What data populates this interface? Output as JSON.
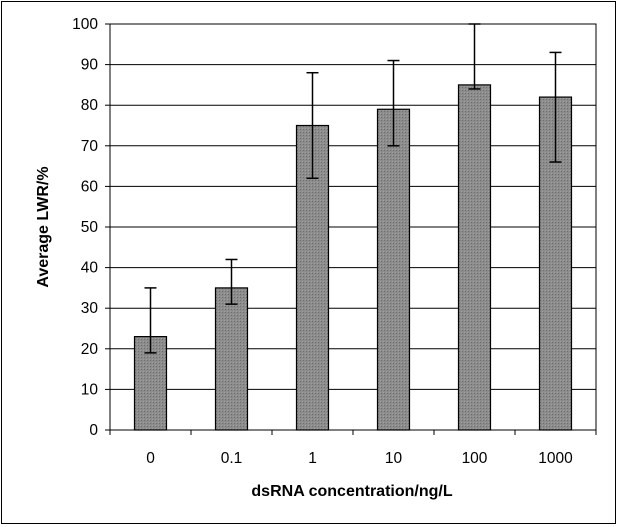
{
  "chart_data": {
    "type": "bar",
    "xlabel": "dsRNA concentration/ng/L",
    "ylabel": "Average LWR/%",
    "categories": [
      "0",
      "0.1",
      "1",
      "10",
      "100",
      "1000"
    ],
    "values": [
      23,
      35,
      75,
      79,
      85,
      82
    ],
    "error_low": [
      19,
      31,
      62,
      70,
      84,
      66
    ],
    "error_high": [
      35,
      42,
      88,
      91,
      100,
      93
    ],
    "ylim": [
      0,
      100
    ],
    "yticks": [
      0,
      10,
      20,
      30,
      40,
      50,
      60,
      70,
      80,
      90,
      100
    ],
    "grid": true,
    "colors": {
      "bar_fill": "#8c8c8c",
      "bar_stroke": "#000000",
      "grid": "#000000"
    }
  }
}
